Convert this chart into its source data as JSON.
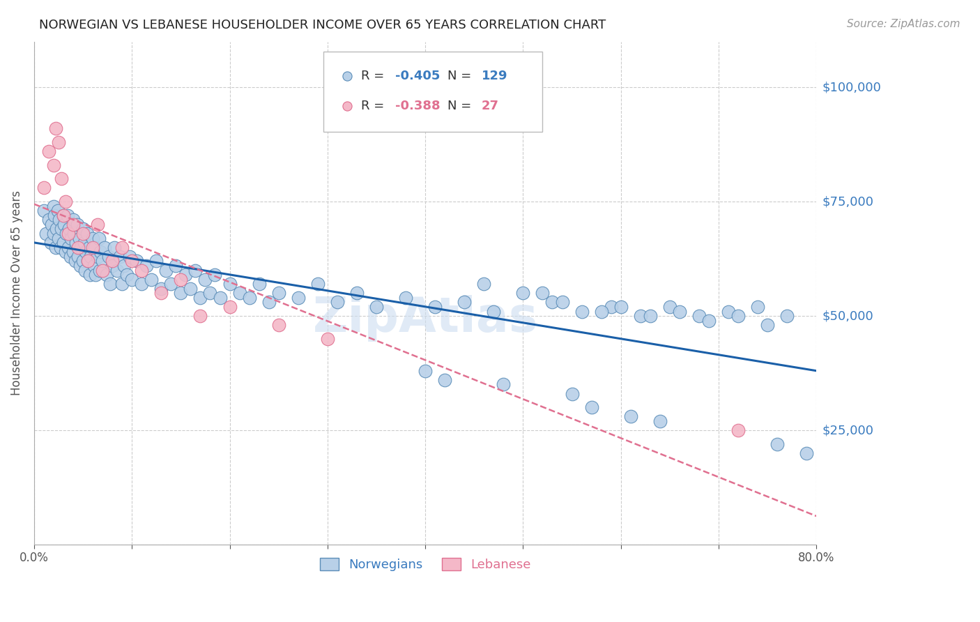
{
  "title": "NORWEGIAN VS LEBANESE HOUSEHOLDER INCOME OVER 65 YEARS CORRELATION CHART",
  "source": "Source: ZipAtlas.com",
  "ylabel": "Householder Income Over 65 years",
  "xmin": 0.0,
  "xmax": 0.8,
  "ymin": 0,
  "ymax": 110000,
  "ytick_vals": [
    0,
    25000,
    50000,
    75000,
    100000
  ],
  "ytick_labels_right": [
    "",
    "$25,000",
    "$50,000",
    "$75,000",
    "$100,000"
  ],
  "xtick_vals": [
    0.0,
    0.1,
    0.2,
    0.3,
    0.4,
    0.5,
    0.6,
    0.7,
    0.8
  ],
  "xtick_labels": [
    "0.0%",
    "",
    "",
    "",
    "",
    "",
    "",
    "",
    "80.0%"
  ],
  "norwegian_color": "#b8d0e8",
  "norwegian_edge_color": "#5b8db8",
  "lebanese_color": "#f4b8c8",
  "lebanese_edge_color": "#e07090",
  "regression_norwegian_color": "#1a5fa8",
  "regression_lebanese_color": "#e07090",
  "watermark": "ZipAtlas",
  "legend_r_norwegian": "-0.405",
  "legend_n_norwegian": "129",
  "legend_r_lebanese": "-0.388",
  "legend_n_lebanese": "27",
  "title_color": "#222222",
  "axis_label_color": "#555555",
  "right_label_color": "#3a7bbf",
  "grid_color": "#cccccc",
  "norwegian_x": [
    0.01,
    0.012,
    0.015,
    0.017,
    0.018,
    0.02,
    0.02,
    0.021,
    0.022,
    0.023,
    0.024,
    0.025,
    0.026,
    0.027,
    0.028,
    0.03,
    0.03,
    0.031,
    0.032,
    0.033,
    0.034,
    0.035,
    0.036,
    0.037,
    0.038,
    0.04,
    0.04,
    0.041,
    0.042,
    0.043,
    0.044,
    0.045,
    0.046,
    0.047,
    0.048,
    0.05,
    0.05,
    0.051,
    0.052,
    0.053,
    0.054,
    0.055,
    0.056,
    0.057,
    0.058,
    0.06,
    0.061,
    0.062,
    0.063,
    0.065,
    0.066,
    0.067,
    0.068,
    0.07,
    0.072,
    0.074,
    0.076,
    0.078,
    0.08,
    0.082,
    0.085,
    0.088,
    0.09,
    0.092,
    0.095,
    0.098,
    0.1,
    0.105,
    0.11,
    0.115,
    0.12,
    0.125,
    0.13,
    0.135,
    0.14,
    0.145,
    0.15,
    0.155,
    0.16,
    0.165,
    0.17,
    0.175,
    0.18,
    0.185,
    0.19,
    0.2,
    0.21,
    0.22,
    0.23,
    0.24,
    0.25,
    0.27,
    0.29,
    0.31,
    0.33,
    0.35,
    0.38,
    0.41,
    0.44,
    0.47,
    0.5,
    0.53,
    0.56,
    0.59,
    0.62,
    0.65,
    0.68,
    0.71,
    0.74,
    0.77,
    0.46,
    0.52,
    0.54,
    0.58,
    0.6,
    0.63,
    0.66,
    0.69,
    0.72,
    0.75,
    0.4,
    0.42,
    0.48,
    0.55,
    0.57,
    0.61,
    0.64,
    0.76,
    0.79
  ],
  "norwegian_y": [
    73000,
    68000,
    71000,
    66000,
    70000,
    74000,
    68000,
    72000,
    65000,
    69000,
    73000,
    67000,
    71000,
    65000,
    69000,
    72000,
    66000,
    70000,
    64000,
    68000,
    72000,
    65000,
    69000,
    63000,
    67000,
    71000,
    64000,
    68000,
    62000,
    66000,
    70000,
    63000,
    67000,
    61000,
    65000,
    69000,
    62000,
    66000,
    60000,
    64000,
    68000,
    62000,
    65000,
    59000,
    63000,
    67000,
    61000,
    65000,
    59000,
    63000,
    67000,
    60000,
    64000,
    62000,
    65000,
    59000,
    63000,
    57000,
    61000,
    65000,
    60000,
    63000,
    57000,
    61000,
    59000,
    63000,
    58000,
    62000,
    57000,
    61000,
    58000,
    62000,
    56000,
    60000,
    57000,
    61000,
    55000,
    59000,
    56000,
    60000,
    54000,
    58000,
    55000,
    59000,
    54000,
    57000,
    55000,
    54000,
    57000,
    53000,
    55000,
    54000,
    57000,
    53000,
    55000,
    52000,
    54000,
    52000,
    53000,
    51000,
    55000,
    53000,
    51000,
    52000,
    50000,
    52000,
    50000,
    51000,
    52000,
    50000,
    57000,
    55000,
    53000,
    51000,
    52000,
    50000,
    51000,
    49000,
    50000,
    48000,
    38000,
    36000,
    35000,
    33000,
    30000,
    28000,
    27000,
    22000,
    20000
  ],
  "lebanese_x": [
    0.01,
    0.015,
    0.02,
    0.022,
    0.025,
    0.028,
    0.03,
    0.032,
    0.035,
    0.04,
    0.045,
    0.05,
    0.055,
    0.06,
    0.065,
    0.07,
    0.08,
    0.09,
    0.1,
    0.11,
    0.13,
    0.15,
    0.17,
    0.2,
    0.25,
    0.3,
    0.72
  ],
  "lebanese_y": [
    78000,
    86000,
    83000,
    91000,
    88000,
    80000,
    72000,
    75000,
    68000,
    70000,
    65000,
    68000,
    62000,
    65000,
    70000,
    60000,
    62000,
    65000,
    62000,
    60000,
    55000,
    58000,
    50000,
    52000,
    48000,
    45000,
    25000
  ]
}
